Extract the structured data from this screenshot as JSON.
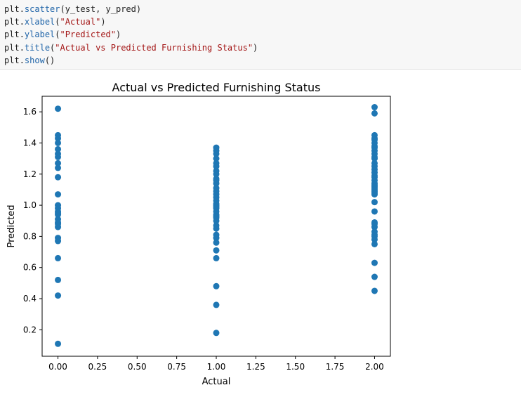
{
  "code_cell": {
    "lines": [
      [
        {
          "t": "plt",
          "k": "obj"
        },
        {
          "t": ".",
          "k": "obj"
        },
        {
          "t": "scatter",
          "k": "fn"
        },
        {
          "t": "(y_test, y_pred)",
          "k": "obj"
        }
      ],
      [
        {
          "t": "plt",
          "k": "obj"
        },
        {
          "t": ".",
          "k": "obj"
        },
        {
          "t": "xlabel",
          "k": "fn"
        },
        {
          "t": "(",
          "k": "obj"
        },
        {
          "t": "\"Actual\"",
          "k": "str"
        },
        {
          "t": ")",
          "k": "obj"
        }
      ],
      [
        {
          "t": "plt",
          "k": "obj"
        },
        {
          "t": ".",
          "k": "obj"
        },
        {
          "t": "ylabel",
          "k": "fn"
        },
        {
          "t": "(",
          "k": "obj"
        },
        {
          "t": "\"Predicted\"",
          "k": "str"
        },
        {
          "t": ")",
          "k": "obj"
        }
      ],
      [
        {
          "t": "plt",
          "k": "obj"
        },
        {
          "t": ".",
          "k": "obj"
        },
        {
          "t": "title",
          "k": "fn"
        },
        {
          "t": "(",
          "k": "obj"
        },
        {
          "t": "\"Actual vs Predicted Furnishing Status\"",
          "k": "str"
        },
        {
          "t": ")",
          "k": "obj"
        }
      ],
      [
        {
          "t": "plt",
          "k": "obj"
        },
        {
          "t": ".",
          "k": "obj"
        },
        {
          "t": "show",
          "k": "fn"
        },
        {
          "t": "()",
          "k": "obj"
        }
      ]
    ]
  },
  "colors": {
    "marker": "#1f77b4",
    "code_function": "#1f64a8",
    "code_string": "#a31515",
    "code_background": "#f7f7f7"
  },
  "chart_data": {
    "type": "scatter",
    "title": "Actual vs Predicted Furnishing Status",
    "xlabel": "Actual",
    "ylabel": "Predicted",
    "xlim": [
      -0.1,
      2.1
    ],
    "ylim": [
      0.03,
      1.7
    ],
    "xticks": [
      "0.00",
      "0.25",
      "0.50",
      "0.75",
      "1.00",
      "1.25",
      "1.50",
      "1.75",
      "2.00"
    ],
    "yticks": [
      "0.2",
      "0.4",
      "0.6",
      "0.8",
      "1.0",
      "1.2",
      "1.4",
      "1.6"
    ],
    "grid": false,
    "x": [
      0,
      0,
      0,
      0,
      0,
      0,
      0,
      0,
      0,
      0,
      0,
      0,
      0,
      0,
      0,
      0,
      0,
      0,
      0,
      0,
      0,
      0,
      0,
      0,
      0,
      0,
      1,
      1,
      1,
      1,
      1,
      1,
      1,
      1,
      1,
      1,
      1,
      1,
      1,
      1,
      1,
      1,
      1,
      1,
      1,
      1,
      1,
      1,
      1,
      1,
      1,
      1,
      1,
      1,
      1,
      1,
      1,
      1,
      1,
      1,
      1,
      2,
      2,
      2,
      2,
      2,
      2,
      2,
      2,
      2,
      2,
      2,
      2,
      2,
      2,
      2,
      2,
      2,
      2,
      2,
      2,
      2,
      2,
      2,
      2,
      2,
      2,
      2,
      2,
      2,
      2,
      2,
      2,
      2,
      2,
      2,
      2,
      2,
      2,
      2,
      2
    ],
    "y": [
      1.62,
      1.45,
      1.4,
      1.36,
      1.31,
      1.27,
      1.24,
      1.18,
      1.07,
      1.0,
      0.98,
      0.96,
      0.94,
      0.91,
      0.89,
      0.86,
      0.79,
      0.77,
      0.66,
      0.52,
      0.42,
      0.11,
      1.43,
      1.33,
      0.95,
      0.88,
      1.37,
      1.35,
      1.33,
      1.27,
      1.25,
      1.2,
      1.17,
      1.14,
      1.11,
      1.07,
      1.05,
      1.03,
      1.0,
      0.98,
      0.96,
      0.94,
      0.92,
      0.9,
      0.87,
      0.81,
      0.79,
      0.76,
      0.71,
      0.66,
      0.48,
      0.36,
      0.18,
      1.22,
      1.09,
      1.01,
      0.99,
      0.85,
      0.93,
      1.16,
      1.3,
      1.63,
      1.59,
      1.45,
      1.43,
      1.4,
      1.37,
      1.35,
      1.33,
      1.3,
      1.27,
      1.23,
      1.21,
      1.18,
      1.16,
      1.13,
      1.11,
      1.09,
      1.07,
      1.02,
      0.96,
      0.89,
      0.86,
      0.83,
      0.8,
      0.78,
      0.75,
      0.63,
      0.54,
      0.45,
      1.42,
      1.38,
      1.31,
      1.25,
      1.19,
      1.14,
      1.12,
      1.1,
      1.08,
      0.88,
      0.81
    ]
  }
}
